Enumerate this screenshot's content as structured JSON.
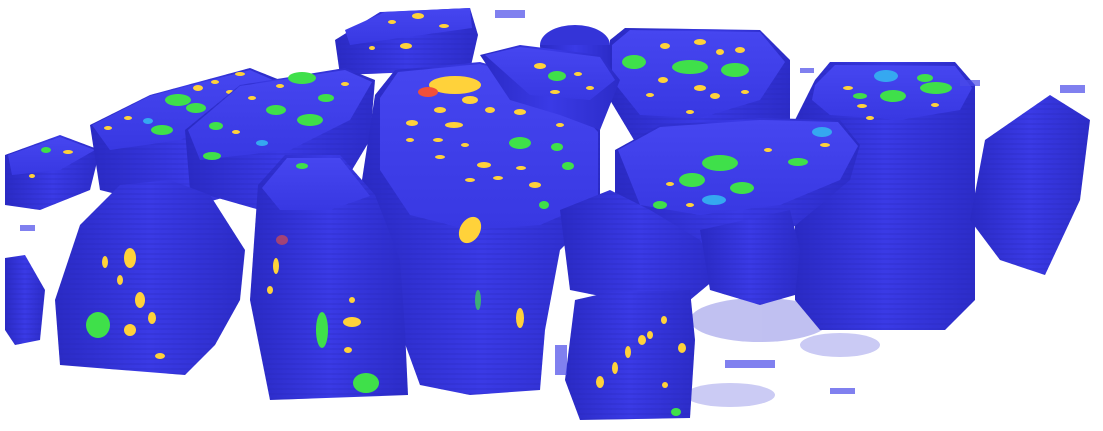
{
  "scene": {
    "subject": "",
    "colors": {
      "background": "#ffffff",
      "matrix_blue": "#3a3ae6",
      "matrix_blue_dark": "#2a2ac4",
      "matrix_blue_light": "#5a5af2",
      "yellow_phase": "#ffd23a",
      "green_phase": "#3fe04a",
      "cyan_phase": "#35a8f0",
      "red_phase": "#f0503a"
    }
  }
}
